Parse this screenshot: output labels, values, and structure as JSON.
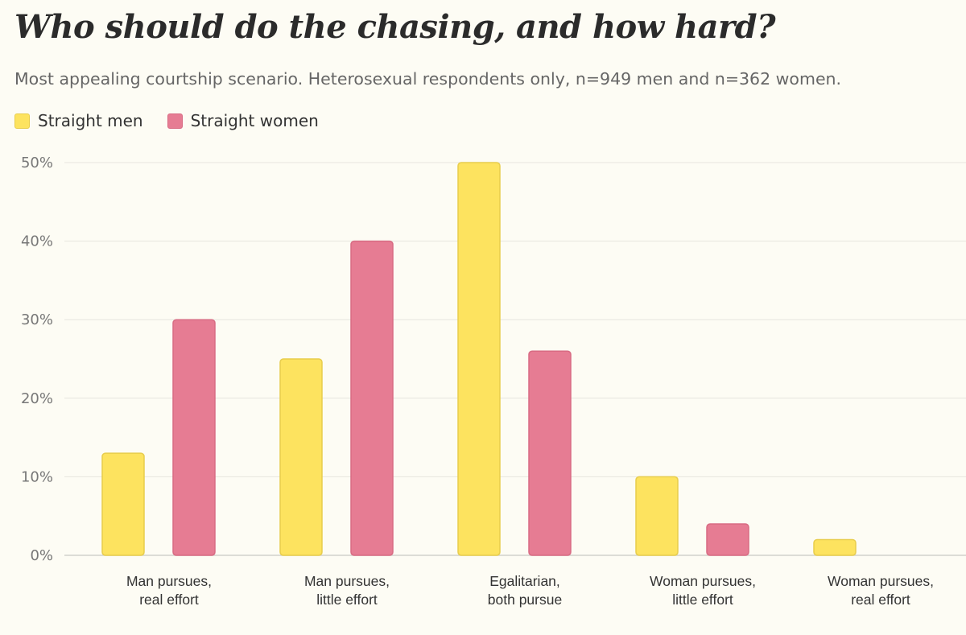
{
  "chart_data": {
    "type": "bar",
    "title": "Who should do the chasing, and how hard?",
    "subtitle": "Most appealing courtship scenario. Heterosexual respondents only, n=949 men and n=362 women.",
    "categories": [
      [
        "Man pursues,",
        "real effort"
      ],
      [
        "Man pursues,",
        "little effort"
      ],
      [
        "Egalitarian,",
        "both pursue"
      ],
      [
        "Woman pursues,",
        "little effort"
      ],
      [
        "Woman pursues,",
        "real effort"
      ]
    ],
    "series": [
      {
        "name": "Straight men",
        "color": "#fde35f",
        "stroke": "#e8cd4c",
        "values": [
          13,
          25,
          50,
          10,
          2
        ]
      },
      {
        "name": "Straight women",
        "color": "#e67c93",
        "stroke": "#d86b83",
        "values": [
          30,
          40,
          26,
          4,
          0
        ]
      }
    ],
    "yticks": [
      0,
      10,
      20,
      30,
      40,
      50
    ],
    "ytick_labels": [
      "0%",
      "10%",
      "20%",
      "30%",
      "40%",
      "50%"
    ],
    "ylim": [
      0,
      50
    ],
    "xlabel": "",
    "ylabel": "",
    "grid": true,
    "legend_position": "top-left"
  }
}
